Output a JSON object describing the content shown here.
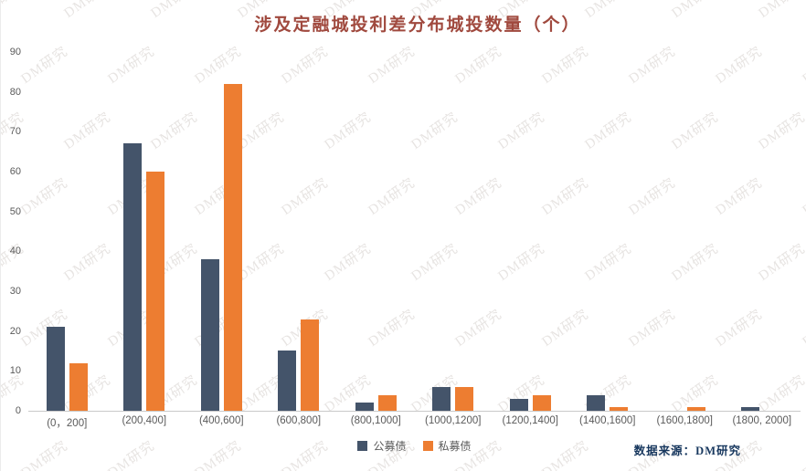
{
  "watermark": {
    "text": "DM研究"
  },
  "footer": {
    "source_label": "数据来源：DM研究"
  },
  "chart_data": {
    "type": "bar",
    "title": "涉及定融城投利差分布城投数量（个）",
    "categories": [
      "(0，200]",
      "(200,400]",
      "(400,600]",
      "(600,800]",
      "(800,1000]",
      "(1000,1200]",
      "(1200,1400]",
      "(1400,1600]",
      "(1600,1800]",
      "(1800, 2000]"
    ],
    "series": [
      {
        "name": "公募债",
        "color": "#44546A",
        "values": [
          21,
          67,
          38,
          15,
          2,
          6,
          3,
          4,
          0,
          1
        ]
      },
      {
        "name": "私募债",
        "color": "#ED7D31",
        "values": [
          12,
          60,
          82,
          23,
          4,
          6,
          4,
          1,
          1,
          0
        ]
      }
    ],
    "ylabel": "",
    "xlabel": "",
    "ylim": [
      0,
      90
    ],
    "ytick_step": 10,
    "grid": false,
    "legend_position": "bottom",
    "source_note": "数据来源：DM研究"
  }
}
